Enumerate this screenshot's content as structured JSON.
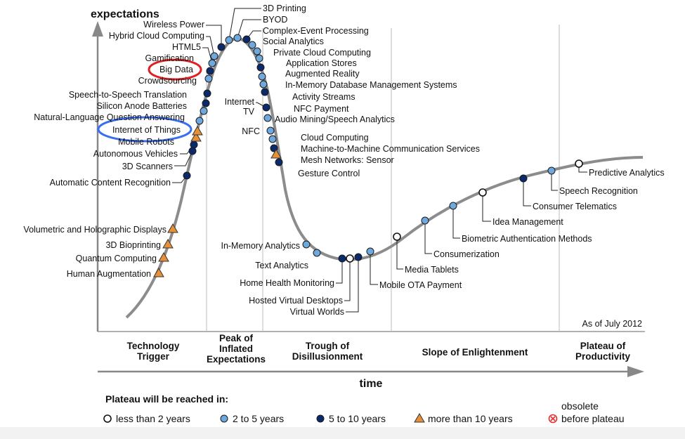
{
  "chart_data": {
    "type": "scatter",
    "y_axis_label": "expectations",
    "x_axis_label": "time",
    "as_of": "As of July 2012",
    "phases": [
      {
        "lines": [
          "Technology",
          "Trigger"
        ]
      },
      {
        "lines": [
          "Peak of",
          "Inflated",
          "Expectations"
        ]
      },
      {
        "lines": [
          "Trough of",
          "Disillusionment"
        ]
      },
      {
        "lines": [
          "Slope of Enlightenment"
        ]
      },
      {
        "lines": [
          "Plateau of",
          "Productivity"
        ]
      }
    ],
    "legend": {
      "title": "Plateau will be reached in:",
      "items": [
        {
          "label": "less than 2 years",
          "marker": "open-circle",
          "color": "#ffffff"
        },
        {
          "label": "2 to 5 years",
          "marker": "circle",
          "color": "#6fa8dc"
        },
        {
          "label": "5 to 10 years",
          "marker": "circle",
          "color": "#0b2a6b"
        },
        {
          "label": "more than 10 years",
          "marker": "triangle",
          "color": "#e69138"
        },
        {
          "label_lines": [
            "obsolete",
            "before plateau"
          ],
          "marker": "cross-circle",
          "color": "#e03030"
        }
      ]
    },
    "technologies": [
      {
        "name": "Human Augmentation",
        "category": "more than 10 years"
      },
      {
        "name": "Quantum Computing",
        "category": "more than 10 years"
      },
      {
        "name": "3D Bioprinting",
        "category": "more than 10 years"
      },
      {
        "name": "Volumetric and Holographic Displays",
        "category": "more than 10 years"
      },
      {
        "name": "Automatic Content Recognition",
        "category": "5 to 10 years"
      },
      {
        "name": "3D Scanners",
        "category": "5 to 10 years"
      },
      {
        "name": "Autonomous Vehicles",
        "category": "5 to 10 years"
      },
      {
        "name": "Mobile Robots",
        "category": "more than 10 years"
      },
      {
        "name": "Internet of Things",
        "category": "more than 10 years"
      },
      {
        "name": "Natural-Language Question Answering",
        "category": "2 to 5 years"
      },
      {
        "name": "Silicon Anode Batteries",
        "category": "2 to 5 years"
      },
      {
        "name": "Speech-to-Speech Translation",
        "category": "5 to 10 years"
      },
      {
        "name": "Crowdsourcing",
        "category": "5 to 10 years"
      },
      {
        "name": "Big Data",
        "category": "2 to 5 years"
      },
      {
        "name": "Gamification",
        "category": "5 to 10 years"
      },
      {
        "name": "HTML5",
        "category": "2 to 5 years"
      },
      {
        "name": "Hybrid Cloud Computing",
        "category": "2 to 5 years"
      },
      {
        "name": "Wireless Power",
        "category": "5 to 10 years"
      },
      {
        "name": "3D Printing",
        "category": "2 to 5 years"
      },
      {
        "name": "BYOD",
        "category": "2 to 5 years"
      },
      {
        "name": "Complex-Event Processing",
        "category": "5 to 10 years"
      },
      {
        "name": "Social Analytics",
        "category": "2 to 5 years"
      },
      {
        "name": "Private Cloud Computing",
        "category": "2 to 5 years"
      },
      {
        "name": "Application Stores",
        "category": "2 to 5 years"
      },
      {
        "name": "Augmented Reality",
        "category": "5 to 10 years"
      },
      {
        "name": "In-Memory Database Management Systems",
        "category": "2 to 5 years"
      },
      {
        "name": "Activity Streams",
        "category": "2 to 5 years"
      },
      {
        "name": "Internet TV",
        "label_lines": [
          "Internet",
          "TV"
        ],
        "category": "5 to 10 years"
      },
      {
        "name": "NFC Payment",
        "category": "5 to 10 years"
      },
      {
        "name": "Audio Mining/Speech Analytics",
        "category": "2 to 5 years"
      },
      {
        "name": "NFC",
        "category": "2 to 5 years"
      },
      {
        "name": "Cloud Computing",
        "category": "2 to 5 years"
      },
      {
        "name": "Machine-to-Machine Communication Services",
        "category": "5 to 10 years"
      },
      {
        "name": "Mesh Networks: Sensor",
        "category": "more than 10 years"
      },
      {
        "name": "Gesture Control",
        "category": "5 to 10 years"
      },
      {
        "name": "In-Memory Analytics",
        "category": "2 to 5 years"
      },
      {
        "name": "Text Analytics",
        "category": "2 to 5 years"
      },
      {
        "name": "Home Health Monitoring",
        "category": "5 to 10 years"
      },
      {
        "name": "Hosted Virtual Desktops",
        "category": "less than 2 years"
      },
      {
        "name": "Virtual Worlds",
        "category": "5 to 10 years"
      },
      {
        "name": "Mobile OTA Payment",
        "category": "2 to 5 years"
      },
      {
        "name": "Media Tablets",
        "category": "less than 2 years"
      },
      {
        "name": "Consumerization",
        "category": "2 to 5 years"
      },
      {
        "name": "Biometric Authentication Methods",
        "category": "2 to 5 years"
      },
      {
        "name": "Idea Management",
        "category": "less than 2 years"
      },
      {
        "name": "Consumer Telematics",
        "category": "5 to 10 years"
      },
      {
        "name": "Speech Recognition",
        "category": "2 to 5 years"
      },
      {
        "name": "Predictive Analytics",
        "category": "less than 2 years"
      }
    ],
    "highlighted": [
      {
        "name": "Big Data",
        "ring_color": "#e02020"
      },
      {
        "name": "Internet of Things",
        "ring_color": "#3a6ef0"
      }
    ]
  }
}
